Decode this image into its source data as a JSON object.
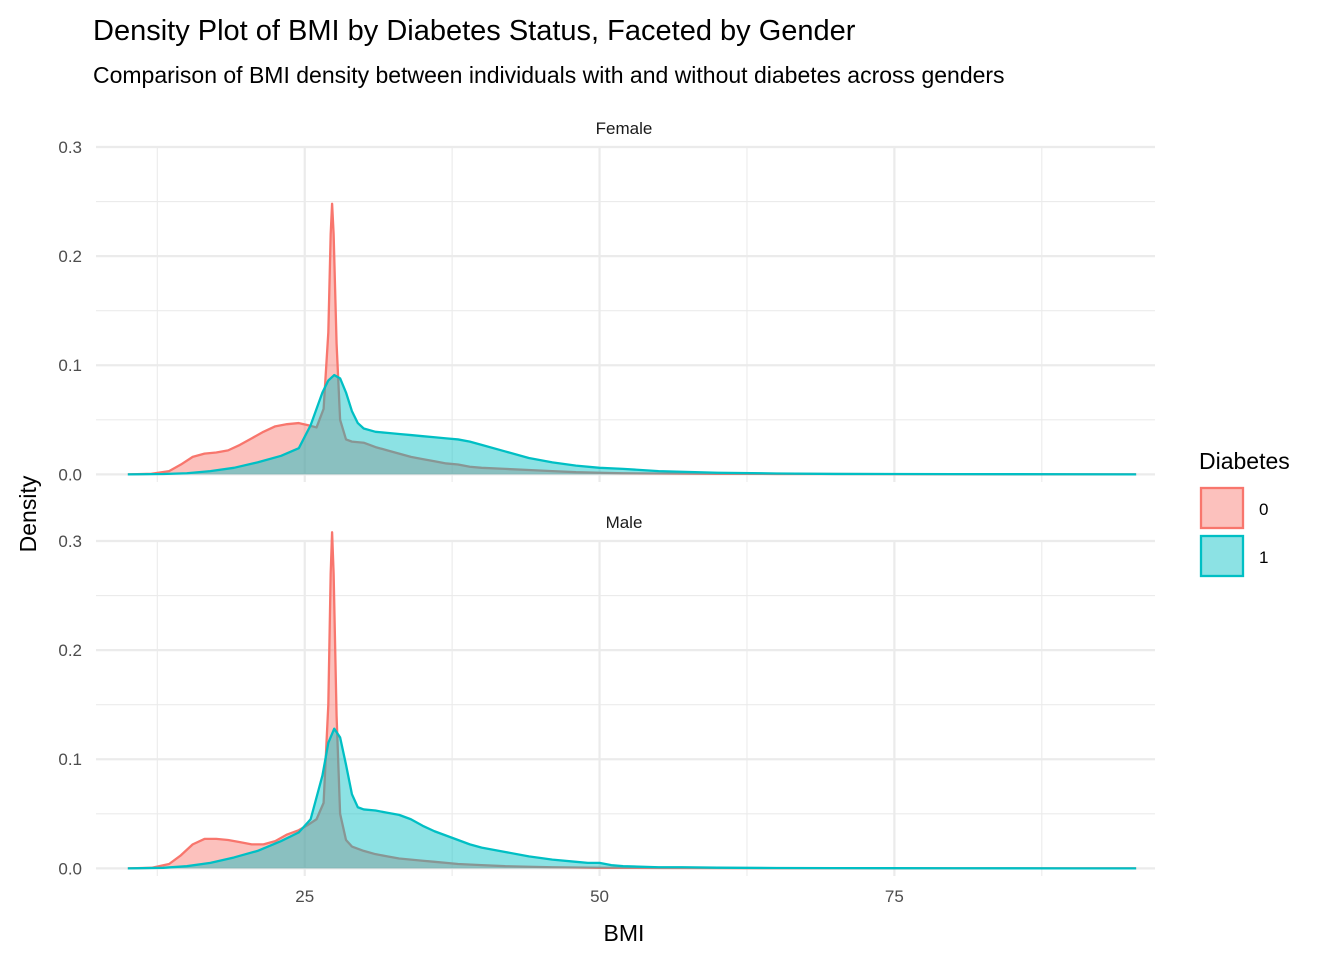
{
  "chart_data": {
    "type": "area",
    "subtype": "density",
    "title": "Density Plot of BMI by Diabetes Status, Faceted by Gender",
    "subtitle": "Comparison of BMI density between individuals with and without diabetes across genders",
    "xlabel": "BMI",
    "ylabel": "Density",
    "xlim": [
      7.3,
      97.1
    ],
    "ylim": [
      -0.007,
      0.3
    ],
    "x_ticks": [
      25,
      50,
      75
    ],
    "x_tick_labels": [
      "25",
      "50",
      "75"
    ],
    "y_ticks": [
      0.0,
      0.1,
      0.2,
      0.3
    ],
    "y_tick_labels": [
      "0.0",
      "0.1",
      "0.2",
      "0.3"
    ],
    "grid": true,
    "legend": {
      "title": "Diabetes",
      "position": "right",
      "entries": [
        {
          "label": "0",
          "line": "#F8766D",
          "fill": "#F8766D"
        },
        {
          "label": "1",
          "line": "#00BFC4",
          "fill": "#00BFC4"
        }
      ]
    },
    "fill_opacity": 0.45,
    "facets": [
      {
        "label": "Female",
        "series": [
          {
            "group": "0",
            "x": [
              10.0,
              12.0,
              13.5,
              14.5,
              15.5,
              16.5,
              17.5,
              18.5,
              19.5,
              20.5,
              21.5,
              22.5,
              23.5,
              24.5,
              25.3,
              26.0,
              26.6,
              27.0,
              27.2,
              27.32,
              27.45,
              27.7,
              28.0,
              28.5,
              29.0,
              30.0,
              31.0,
              32.0,
              33.0,
              34.0,
              35.0,
              36.0,
              37.0,
              38.0,
              39.0,
              40.0,
              42.0,
              44.0,
              46.0,
              48.0,
              50.0,
              52.0,
              55.0,
              60.0,
              65.0,
              70.0,
              80.0,
              90.0,
              95.5
            ],
            "y": [
              0.0,
              0.0005,
              0.003,
              0.009,
              0.016,
              0.019,
              0.02,
              0.022,
              0.027,
              0.033,
              0.039,
              0.044,
              0.046,
              0.047,
              0.045,
              0.043,
              0.06,
              0.13,
              0.22,
              0.248,
              0.22,
              0.12,
              0.05,
              0.032,
              0.03,
              0.029,
              0.025,
              0.022,
              0.019,
              0.016,
              0.014,
              0.012,
              0.01,
              0.009,
              0.007,
              0.006,
              0.005,
              0.004,
              0.003,
              0.002,
              0.0015,
              0.001,
              0.0008,
              0.0005,
              0.0004,
              0.0003,
              0.0001,
              0.0,
              0.0
            ]
          },
          {
            "group": "1",
            "x": [
              10.0,
              13.0,
              15.0,
              17.0,
              19.0,
              21.0,
              23.0,
              24.5,
              25.5,
              26.5,
              27.0,
              27.5,
              28.0,
              28.5,
              29.0,
              29.5,
              30.0,
              31.0,
              32.0,
              33.0,
              34.0,
              35.0,
              36.0,
              37.0,
              38.0,
              39.0,
              40.0,
              42.0,
              44.0,
              46.0,
              48.0,
              50.0,
              52.0,
              55.0,
              60.0,
              65.0,
              70.0,
              80.0,
              90.0,
              95.5
            ],
            "y": [
              0.0,
              0.0003,
              0.001,
              0.003,
              0.006,
              0.011,
              0.017,
              0.024,
              0.045,
              0.075,
              0.086,
              0.091,
              0.088,
              0.075,
              0.058,
              0.047,
              0.042,
              0.039,
              0.038,
              0.037,
              0.036,
              0.035,
              0.034,
              0.033,
              0.032,
              0.03,
              0.027,
              0.021,
              0.015,
              0.011,
              0.008,
              0.006,
              0.005,
              0.003,
              0.0015,
              0.0008,
              0.0004,
              0.0002,
              0.0001,
              0.0
            ]
          }
        ]
      },
      {
        "label": "Male",
        "series": [
          {
            "group": "0",
            "x": [
              10.0,
              12.0,
              13.5,
              14.5,
              15.5,
              16.5,
              17.5,
              18.5,
              19.5,
              20.5,
              21.5,
              22.5,
              23.5,
              24.5,
              25.3,
              26.0,
              26.6,
              27.0,
              27.2,
              27.32,
              27.45,
              27.7,
              28.0,
              28.5,
              29.0,
              30.0,
              31.0,
              32.0,
              33.0,
              34.0,
              35.0,
              36.0,
              37.0,
              38.0,
              40.0,
              42.0,
              44.0,
              46.0,
              48.0,
              50.0,
              55.0,
              60.0,
              70.0,
              80.0,
              95.5
            ],
            "y": [
              0.0,
              0.0005,
              0.004,
              0.012,
              0.022,
              0.027,
              0.027,
              0.026,
              0.024,
              0.022,
              0.022,
              0.025,
              0.031,
              0.035,
              0.04,
              0.045,
              0.06,
              0.15,
              0.27,
              0.308,
              0.27,
              0.14,
              0.05,
              0.026,
              0.02,
              0.016,
              0.013,
              0.011,
              0.009,
              0.008,
              0.007,
              0.006,
              0.005,
              0.004,
              0.003,
              0.002,
              0.0015,
              0.001,
              0.0008,
              0.0005,
              0.0004,
              0.0002,
              0.0001,
              0.0,
              0.0
            ]
          },
          {
            "group": "1",
            "x": [
              10.0,
              13.0,
              15.0,
              17.0,
              19.0,
              21.0,
              23.0,
              24.5,
              25.5,
              26.5,
              27.0,
              27.5,
              28.0,
              28.5,
              29.0,
              29.5,
              30.0,
              31.0,
              32.0,
              33.0,
              34.0,
              35.0,
              36.0,
              37.0,
              38.0,
              39.0,
              40.0,
              42.0,
              44.0,
              46.0,
              48.0,
              49.0,
              50.0,
              51.0,
              52.0,
              55.0,
              57.0,
              60.0,
              65.0,
              70.0,
              80.0,
              90.0,
              95.5
            ],
            "y": [
              0.0,
              0.0005,
              0.002,
              0.005,
              0.01,
              0.016,
              0.025,
              0.033,
              0.045,
              0.085,
              0.115,
              0.128,
              0.12,
              0.095,
              0.068,
              0.056,
              0.054,
              0.053,
              0.051,
              0.049,
              0.045,
              0.039,
              0.034,
              0.03,
              0.026,
              0.022,
              0.019,
              0.015,
              0.011,
              0.008,
              0.006,
              0.005,
              0.005,
              0.003,
              0.002,
              0.001,
              0.001,
              0.0006,
              0.0003,
              0.0002,
              0.0001,
              0.0,
              0.0
            ]
          }
        ]
      }
    ]
  }
}
